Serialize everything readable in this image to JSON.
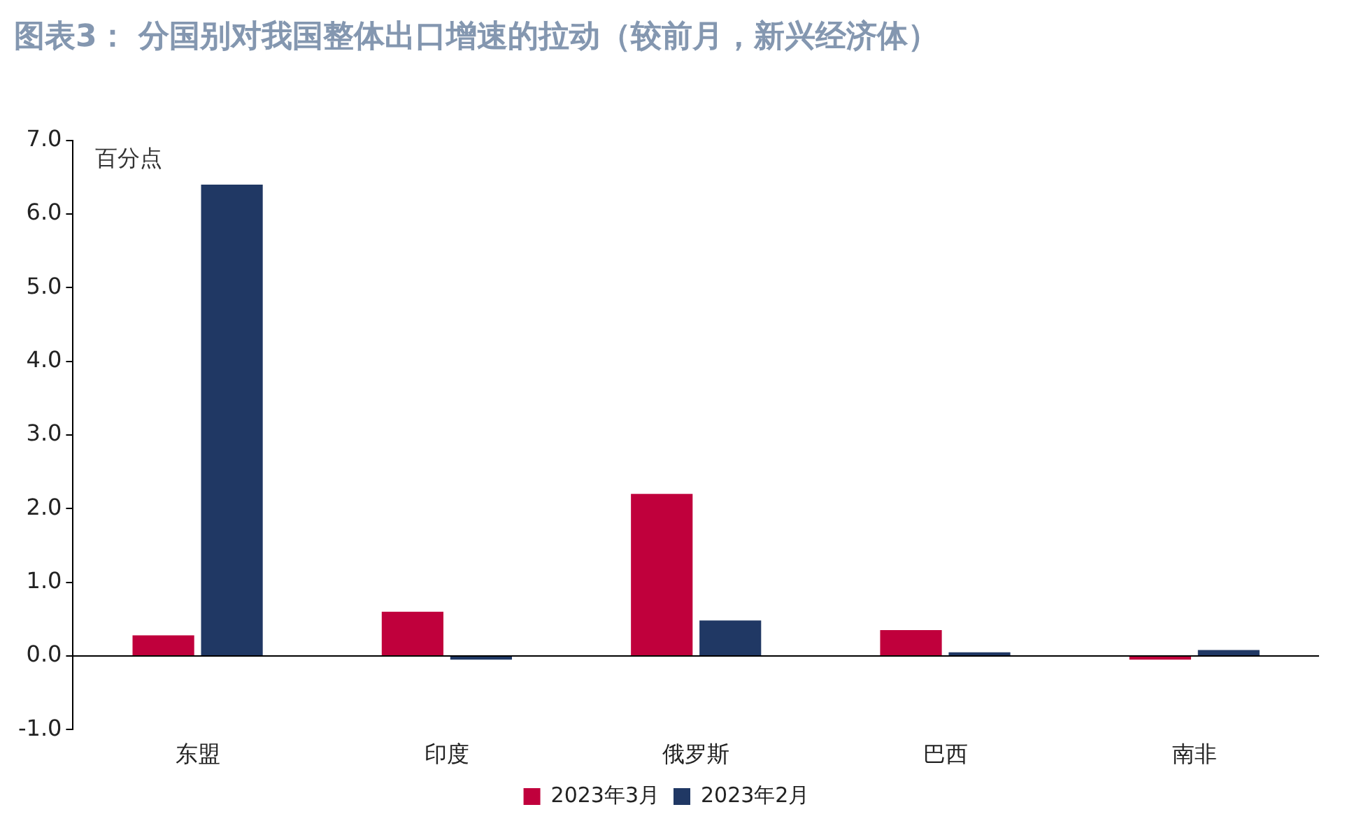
{
  "chart_data": {
    "type": "bar",
    "title": "图表3： 分国别对我国整体出口增速的拉动（较前月，新兴经济体）",
    "ylabel": "百分点",
    "categories": [
      "东盟",
      "印度",
      "俄罗斯",
      "巴西",
      "南非"
    ],
    "series": [
      {
        "name": "2023年3月",
        "color": "#c0003c",
        "values": [
          0.28,
          0.6,
          2.2,
          0.35,
          -0.05
        ]
      },
      {
        "name": "2023年2月",
        "color": "#203864",
        "values": [
          6.4,
          -0.05,
          0.48,
          0.05,
          0.08
        ]
      }
    ],
    "ylim": [
      -1,
      7
    ],
    "yticks": [
      {
        "value": -1,
        "label": "-1.0"
      },
      {
        "value": 0,
        "label": "0.0"
      },
      {
        "value": 1,
        "label": "1.0"
      },
      {
        "value": 2,
        "label": "2.0"
      },
      {
        "value": 3,
        "label": "3.0"
      },
      {
        "value": 4,
        "label": "4.0"
      },
      {
        "value": 5,
        "label": "5.0"
      },
      {
        "value": 6,
        "label": "6.0"
      },
      {
        "value": 7,
        "label": "7.0"
      }
    ],
    "ref_lines": [
      {
        "axis": "y",
        "value": 0,
        "color": "#000000"
      }
    ],
    "grid": false,
    "legend": "bottom"
  }
}
